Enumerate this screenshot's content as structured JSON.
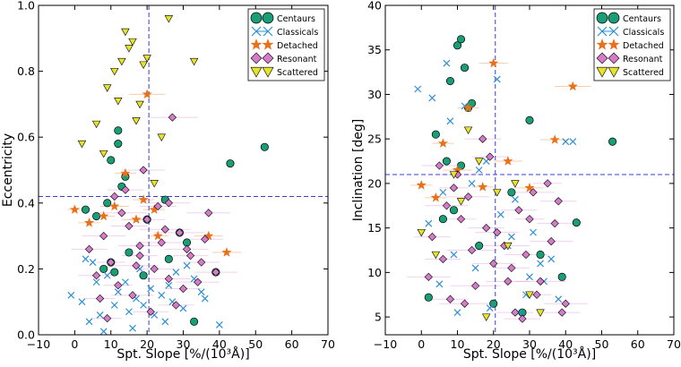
{
  "chart_data": [
    {
      "type": "scatter",
      "xlabel": "Spt. Slope [%/(10³Å)]",
      "ylabel": "Eccentricity",
      "xlim": [
        -10,
        70
      ],
      "ylim": [
        0.0,
        1.0
      ],
      "xticks": [
        "−10",
        "0",
        "10",
        "20",
        "30",
        "40",
        "50",
        "60",
        "70"
      ],
      "yticks": [
        "0.0",
        "0.2",
        "0.4",
        "0.6",
        "0.8",
        "1.0"
      ],
      "reference_lines": {
        "x": 20.5,
        "y": 0.42
      },
      "legend": {
        "placement": "top-right"
      },
      "series": [
        {
          "name": "Centaurs",
          "marker": "circle",
          "color": "#1a9e77",
          "x": [
            3,
            6,
            9,
            10,
            12,
            12,
            13,
            14,
            25,
            29,
            31,
            43,
            52.5,
            39,
            8,
            10,
            11,
            15,
            19,
            26,
            33,
            20
          ],
          "y": [
            0.38,
            0.36,
            0.4,
            0.53,
            0.62,
            0.58,
            0.45,
            0.48,
            0.41,
            0.31,
            0.28,
            0.52,
            0.57,
            0.19,
            0.2,
            0.22,
            0.19,
            0.25,
            0.18,
            0.23,
            0.04,
            0.35
          ]
        },
        {
          "name": "Classicals",
          "marker": "x",
          "color": "#2e8fd6",
          "x": [
            -1,
            2,
            4,
            7,
            11,
            16,
            21,
            24,
            30,
            35,
            40,
            5,
            9,
            14,
            18,
            22,
            27,
            33,
            3,
            12,
            19,
            26,
            36,
            8,
            15,
            25,
            31,
            6,
            17,
            28
          ],
          "y": [
            0.12,
            0.1,
            0.04,
            0.06,
            0.09,
            0.02,
            0.14,
            0.12,
            0.08,
            0.13,
            0.03,
            0.22,
            0.18,
            0.16,
            0.2,
            0.06,
            0.1,
            0.17,
            0.23,
            0.13,
            0.09,
            0.15,
            0.11,
            0.01,
            0.07,
            0.04,
            0.21,
            0.16,
            0.11,
            0.19
          ]
        },
        {
          "name": "Detached",
          "marker": "star",
          "color": "#e8711a",
          "x": [
            0,
            4,
            11,
            14,
            17,
            20,
            22,
            23,
            37,
            42,
            19,
            8
          ],
          "y": [
            0.38,
            0.34,
            0.39,
            0.49,
            0.35,
            0.73,
            0.38,
            0.3,
            0.3,
            0.25,
            0.41,
            0.36
          ],
          "x_err": [
            2,
            3,
            4,
            3,
            4,
            5,
            3,
            3,
            4,
            4,
            3,
            3
          ]
        },
        {
          "name": "Resonant",
          "marker": "diamond",
          "color": "#d67aca",
          "x": [
            4,
            8,
            10,
            13,
            15,
            18,
            22,
            26,
            29,
            32,
            37,
            6,
            12,
            16,
            20,
            24,
            28,
            34,
            9,
            14,
            19,
            23,
            27,
            31,
            36,
            11,
            17,
            21,
            25,
            30,
            39,
            7,
            18,
            26,
            35
          ],
          "y": [
            0.26,
            0.3,
            0.22,
            0.37,
            0.33,
            0.27,
            0.2,
            0.4,
            0.31,
            0.24,
            0.37,
            0.18,
            0.15,
            0.12,
            0.35,
            0.28,
            0.09,
            0.16,
            0.05,
            0.44,
            0.5,
            0.39,
            0.66,
            0.26,
            0.29,
            0.42,
            0.21,
            0.07,
            0.32,
            0.14,
            0.19,
            0.11,
            0.24,
            0.17,
            0.22
          ],
          "x_err": [
            5,
            6,
            4,
            7,
            5,
            6,
            5,
            6,
            7,
            5,
            6,
            5,
            4,
            6,
            5,
            7,
            5,
            6,
            4,
            5,
            6,
            5,
            7,
            6,
            5,
            4,
            6,
            5,
            7,
            5,
            6,
            4,
            5,
            6,
            5
          ]
        },
        {
          "name": "Scattered",
          "marker": "triangle-down",
          "color": "#e7e32a",
          "x": [
            2,
            6,
            9,
            11,
            13,
            14,
            16,
            18,
            19,
            20,
            26,
            33,
            12,
            15,
            17,
            8,
            22,
            24
          ],
          "y": [
            0.58,
            0.64,
            0.75,
            0.8,
            0.83,
            0.92,
            0.89,
            0.7,
            0.82,
            0.84,
            0.96,
            0.83,
            0.71,
            0.87,
            0.65,
            0.55,
            0.46,
            0.6
          ]
        }
      ]
    },
    {
      "type": "scatter",
      "xlabel": "Spt. Slope [%/(10³Å)]",
      "ylabel": "Inclination [deg]",
      "xlim": [
        -10,
        70
      ],
      "ylim": [
        3,
        40
      ],
      "xticks": [
        "−10",
        "0",
        "10",
        "20",
        "30",
        "40",
        "50",
        "60",
        "70"
      ],
      "yticks": [
        "5",
        "10",
        "15",
        "20",
        "25",
        "30",
        "35",
        "40"
      ],
      "reference_lines": {
        "x": 20.5,
        "y": 21.0
      },
      "legend": {
        "placement": "top-right"
      },
      "series": [
        {
          "name": "Centaurs",
          "marker": "circle",
          "color": "#1a9e77",
          "x": [
            8,
            10,
            11,
            12,
            13,
            14,
            4,
            7,
            9,
            30,
            53,
            43,
            2,
            20,
            28,
            39,
            16,
            25,
            33,
            11,
            6
          ],
          "y": [
            31.5,
            35.5,
            36.2,
            33.0,
            28.5,
            29.0,
            25.5,
            22.5,
            17.0,
            27.1,
            24.7,
            15.6,
            7.2,
            6.5,
            5.5,
            9.5,
            13.0,
            19.0,
            12.0,
            22.0,
            16.0
          ]
        },
        {
          "name": "Classicals",
          "marker": "x",
          "color": "#2e8fd6",
          "x": [
            -1,
            3,
            7,
            12,
            16,
            21,
            26,
            31,
            36,
            40,
            5,
            10,
            15,
            19,
            24,
            29,
            34,
            2,
            9,
            14,
            22,
            27,
            33,
            38,
            6,
            18,
            25,
            30,
            42,
            8
          ],
          "y": [
            30.6,
            29.6,
            33.5,
            28.7,
            21.5,
            31.7,
            18.2,
            14.5,
            11.5,
            24.7,
            8.7,
            5.5,
            10.5,
            6.0,
            13.0,
            7.5,
            9.0,
            15.5,
            12.0,
            20.0,
            16.5,
            5.5,
            11.0,
            7.0,
            19.0,
            22.5,
            14.0,
            9.5,
            24.7,
            27.0
          ]
        },
        {
          "name": "Detached",
          "marker": "star",
          "color": "#e8711a",
          "x": [
            20,
            42,
            37,
            13,
            4,
            10,
            17,
            24,
            0,
            6,
            30
          ],
          "y": [
            33.5,
            30.9,
            24.9,
            28.5,
            18.4,
            21.5,
            19.6,
            22.5,
            19.8,
            24.5,
            19.5
          ],
          "x_err": [
            4,
            5,
            4,
            3,
            3,
            4,
            3,
            4,
            3,
            3,
            4
          ]
        },
        {
          "name": "Resonant",
          "marker": "diamond",
          "color": "#d67aca",
          "x": [
            3,
            7,
            11,
            14,
            17,
            21,
            25,
            29,
            33,
            37,
            40,
            5,
            9,
            13,
            19,
            23,
            27,
            31,
            35,
            39,
            2,
            8,
            15,
            20,
            26,
            30,
            36,
            6,
            12,
            18,
            24,
            32,
            38,
            10,
            28
          ],
          "y": [
            14.0,
            17.5,
            16.0,
            12.5,
            25.0,
            14.5,
            10.5,
            12.0,
            9.0,
            15.5,
            6.5,
            22.0,
            19.5,
            18.5,
            23.0,
            13.0,
            17.0,
            19.0,
            20.0,
            5.5,
            9.5,
            7.0,
            8.5,
            11.0,
            5.5,
            16.0,
            13.5,
            11.5,
            6.5,
            15.0,
            9.0,
            7.5,
            18.0,
            21.0,
            4.8
          ],
          "x_err": [
            5,
            6,
            4,
            7,
            5,
            6,
            5,
            6,
            7,
            5,
            6,
            5,
            4,
            6,
            5,
            7,
            5,
            6,
            4,
            5,
            6,
            5,
            7,
            6,
            5,
            4,
            6,
            5,
            7,
            5,
            6,
            4,
            5,
            6,
            5
          ]
        },
        {
          "name": "Scattered",
          "marker": "triangle-down",
          "color": "#e7e32a",
          "x": [
            0,
            4,
            9,
            13,
            16,
            21,
            26,
            30,
            33,
            11,
            18,
            24
          ],
          "y": [
            14.5,
            12.0,
            21.0,
            26.0,
            22.5,
            19.0,
            20.0,
            7.5,
            5.5,
            18.0,
            5.0,
            13.0
          ]
        }
      ]
    }
  ]
}
